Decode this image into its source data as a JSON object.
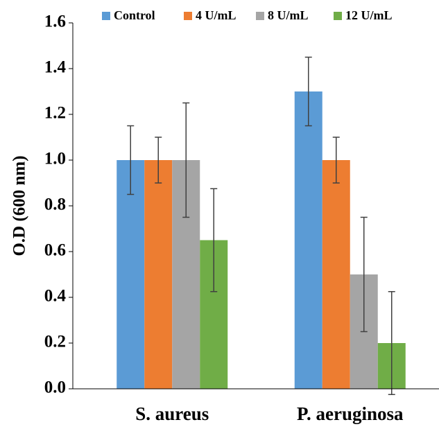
{
  "chart_data": {
    "type": "bar",
    "y_label": "O.D (600 nm)",
    "categories": [
      "S. aureus",
      "P. aeruginosa"
    ],
    "series": [
      {
        "name": "Control",
        "color": "#5b9bd5",
        "values": [
          1.0,
          1.3
        ],
        "errors": [
          0.15,
          0.15
        ]
      },
      {
        "name": "4 U/mL",
        "color": "#ed7d31",
        "values": [
          1.0,
          1.0
        ],
        "errors": [
          0.1,
          0.1
        ]
      },
      {
        "name": "8 U/mL",
        "color": "#a5a5a5",
        "values": [
          1.0,
          0.5
        ],
        "errors": [
          0.25,
          0.25
        ]
      },
      {
        "name": "12 U/mL",
        "color": "#70ad47",
        "values": [
          0.65,
          0.2
        ],
        "errors": [
          0.225,
          0.225
        ]
      }
    ],
    "ylim": [
      0,
      1.6
    ],
    "yticks": [
      {
        "value": 0,
        "label": "0.0"
      },
      0.2,
      0.4,
      0.6,
      0.8,
      {
        "value": 1,
        "label": "1.0"
      },
      1.2,
      1.4,
      1.6
    ]
  }
}
